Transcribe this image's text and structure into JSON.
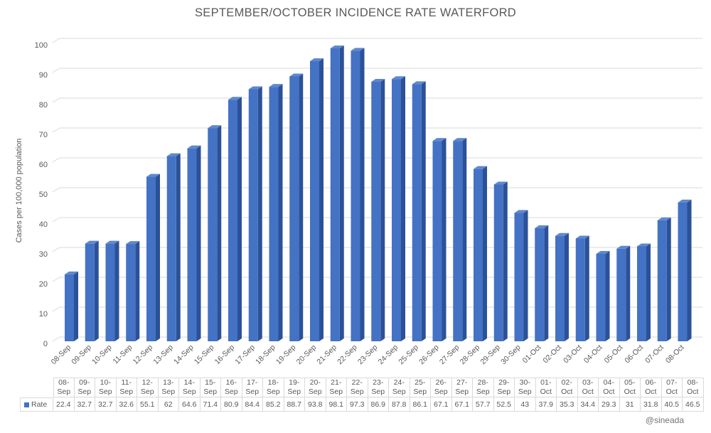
{
  "chart_data": {
    "type": "bar",
    "style": "3d-column",
    "title": "SEPTEMBER/OCTOBER INCIDENCE RATE WATERFORD",
    "ylabel": "Cases per 100,000 population",
    "xlabel": "",
    "ylim": [
      0,
      100
    ],
    "ytick_step": 10,
    "grid": true,
    "legend_position": "table-left",
    "categories": [
      "08-Sep",
      "09-Sep",
      "10-Sep",
      "11-Sep",
      "12-Sep",
      "13-Sep",
      "14-Sep",
      "15-Sep",
      "16-Sep",
      "17-Sep",
      "18-Sep",
      "19-Sep",
      "20-Sep",
      "21-Sep",
      "22-Sep",
      "23-Sep",
      "24-Sep",
      "25-Sep",
      "26-Sep",
      "27-Sep",
      "28-Sep",
      "29-Sep",
      "30-Sep",
      "01-Oct",
      "02-Oct",
      "03-Oct",
      "04-Oct",
      "05-Oct",
      "06-Oct",
      "07-Oct",
      "08-Oct"
    ],
    "series": [
      {
        "name": "Rate",
        "values": [
          22.4,
          32.7,
          32.7,
          32.6,
          55.1,
          62,
          64.6,
          71.4,
          80.9,
          84.4,
          85.2,
          88.7,
          93.8,
          98.1,
          97.3,
          86.9,
          87.8,
          86.1,
          67.1,
          67.1,
          57.7,
          52.5,
          43,
          37.9,
          35.3,
          34.4,
          29.3,
          31,
          31.8,
          40.5,
          46.5
        ]
      }
    ],
    "colors": {
      "bar_front": "#4472C4",
      "bar_side": "#2B5198",
      "bar_top": "#5E88CE",
      "gridline": "#D9D9D9",
      "axis_text": "#595959",
      "title_text": "#595959",
      "table_border": "#D9D9D9",
      "table_text": "#595959"
    }
  },
  "credit": "@sineada"
}
